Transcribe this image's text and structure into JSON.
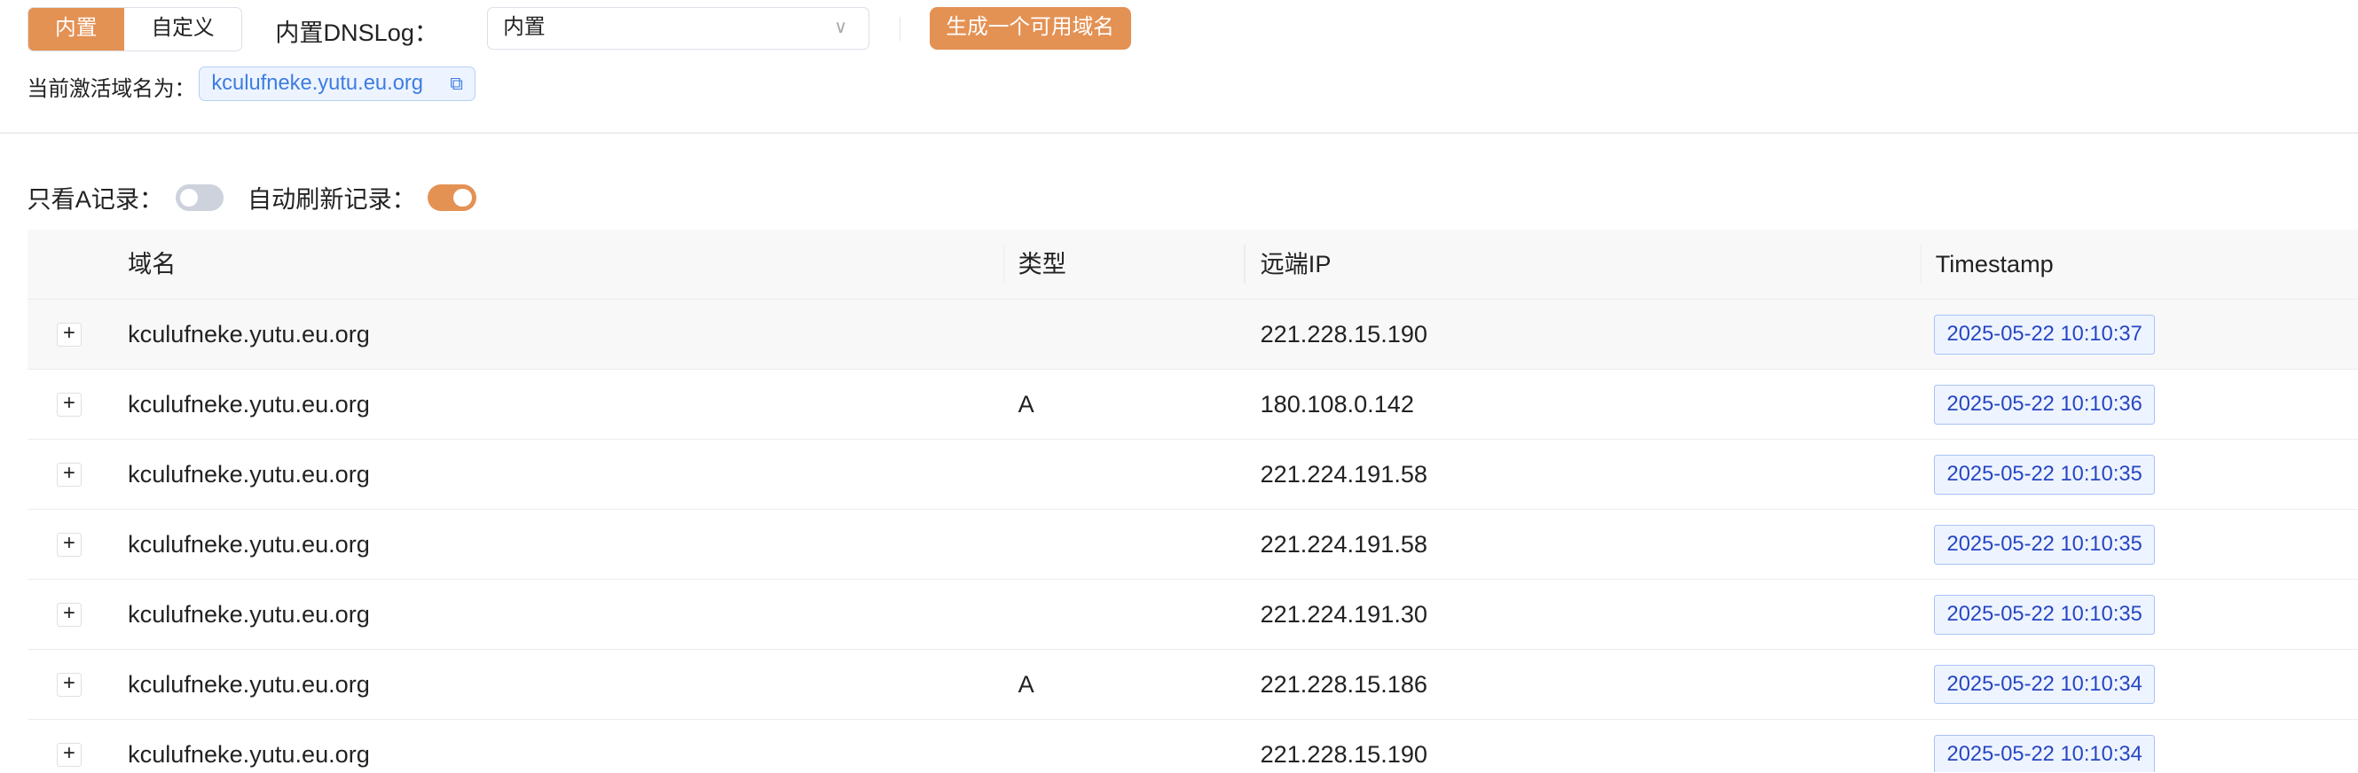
{
  "mode_tabs": [
    {
      "label": "内置",
      "active": true
    },
    {
      "label": "自定义",
      "active": false
    }
  ],
  "dnslog": {
    "label": "内置DNSLog：",
    "selected": "内置"
  },
  "generate_button": "生成一个可用域名",
  "active_domain": {
    "label": "当前激活域名为：",
    "value": "kculufneke.yutu.eu.org"
  },
  "filters": {
    "only_a_label": "只看A记录：",
    "only_a": false,
    "auto_refresh_label": "自动刷新记录：",
    "auto_refresh": true
  },
  "colors": {
    "accent": "#e49154",
    "tag": "#2646c2"
  },
  "table": {
    "headers": [
      "域名",
      "类型",
      "远端IP",
      "Timestamp"
    ],
    "rows": [
      {
        "domain": "kculufneke.yutu.eu.org",
        "type": "",
        "ip": "221.228.15.190",
        "ts": "2025-05-22 10:10:37"
      },
      {
        "domain": "kculufneke.yutu.eu.org",
        "type": "A",
        "ip": "180.108.0.142",
        "ts": "2025-05-22 10:10:36"
      },
      {
        "domain": "kculufneke.yutu.eu.org",
        "type": "",
        "ip": "221.224.191.58",
        "ts": "2025-05-22 10:10:35"
      },
      {
        "domain": "kculufneke.yutu.eu.org",
        "type": "",
        "ip": "221.224.191.58",
        "ts": "2025-05-22 10:10:35"
      },
      {
        "domain": "kculufneke.yutu.eu.org",
        "type": "",
        "ip": "221.224.191.30",
        "ts": "2025-05-22 10:10:35"
      },
      {
        "domain": "kculufneke.yutu.eu.org",
        "type": "A",
        "ip": "221.228.15.186",
        "ts": "2025-05-22 10:10:34"
      },
      {
        "domain": "kculufneke.yutu.eu.org",
        "type": "",
        "ip": "221.228.15.190",
        "ts": "2025-05-22 10:10:34"
      }
    ]
  }
}
